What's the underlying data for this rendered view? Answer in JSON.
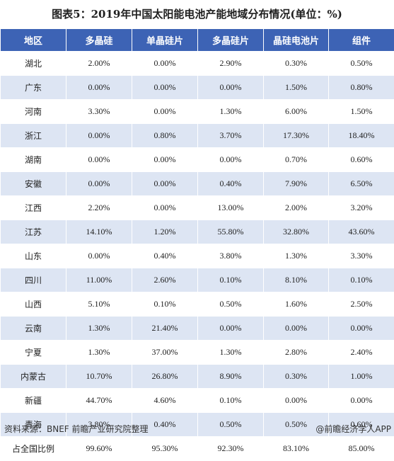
{
  "title": "图表5：2019年中国太阳能电池产能地域分布情况(单位：%)",
  "headers": [
    "地区",
    "多晶硅",
    "单晶硅片",
    "多晶硅片",
    "晶硅电池片",
    "组件"
  ],
  "rows": [
    [
      "湖北",
      "2.00%",
      "0.00%",
      "2.90%",
      "0.30%",
      "0.50%"
    ],
    [
      "广东",
      "0.00%",
      "0.00%",
      "0.00%",
      "1.50%",
      "0.80%"
    ],
    [
      "河南",
      "3.30%",
      "0.00%",
      "1.30%",
      "6.00%",
      "1.50%"
    ],
    [
      "浙江",
      "0.00%",
      "0.80%",
      "3.70%",
      "17.30%",
      "18.40%"
    ],
    [
      "湖南",
      "0.00%",
      "0.00%",
      "0.00%",
      "0.70%",
      "0.60%"
    ],
    [
      "安徽",
      "0.00%",
      "0.00%",
      "0.40%",
      "7.90%",
      "6.50%"
    ],
    [
      "江西",
      "2.20%",
      "0.00%",
      "13.00%",
      "2.00%",
      "3.20%"
    ],
    [
      "江苏",
      "14.10%",
      "1.20%",
      "55.80%",
      "32.80%",
      "43.60%"
    ],
    [
      "山东",
      "0.00%",
      "0.40%",
      "3.80%",
      "1.30%",
      "3.30%"
    ],
    [
      "四川",
      "11.00%",
      "2.60%",
      "0.10%",
      "8.10%",
      "0.10%"
    ],
    [
      "山西",
      "5.10%",
      "0.10%",
      "0.50%",
      "1.60%",
      "2.50%"
    ],
    [
      "云南",
      "1.30%",
      "21.40%",
      "0.00%",
      "0.00%",
      "0.00%"
    ],
    [
      "宁夏",
      "1.30%",
      "37.00%",
      "1.30%",
      "2.80%",
      "2.40%"
    ],
    [
      "内蒙古",
      "10.70%",
      "26.80%",
      "8.90%",
      "0.30%",
      "1.00%"
    ],
    [
      "新疆",
      "44.70%",
      "4.60%",
      "0.10%",
      "0.00%",
      "0.00%"
    ],
    [
      "青海",
      "3.80%",
      "0.40%",
      "0.50%",
      "0.50%",
      "0.60%"
    ],
    [
      "占全国比例",
      "99.60%",
      "95.30%",
      "92.30%",
      "83.10%",
      "85.00%"
    ]
  ],
  "footer": {
    "source": "资料来源：BNEF 前瞻产业研究院整理",
    "brand": "@前瞻经济学人APP"
  }
}
